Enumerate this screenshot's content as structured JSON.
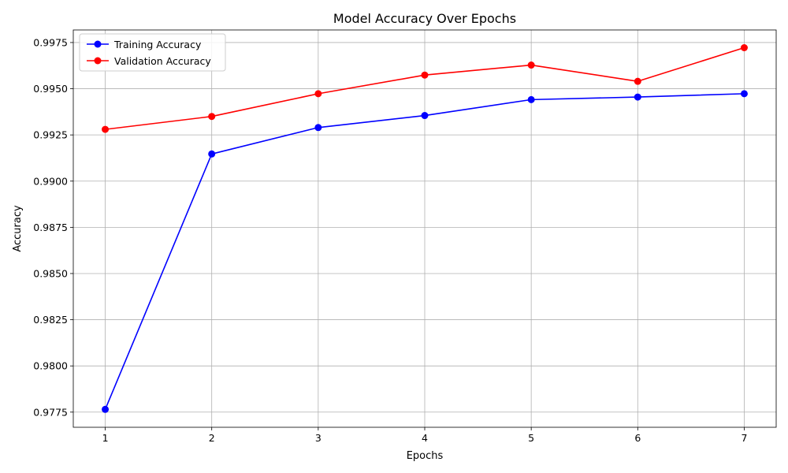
{
  "chart_data": {
    "type": "line",
    "title": "Model Accuracy Over Epochs",
    "xlabel": "Epochs",
    "ylabel": "Accuracy",
    "x": [
      1,
      2,
      3,
      4,
      5,
      6,
      7
    ],
    "xticks": [
      "1",
      "2",
      "3",
      "4",
      "5",
      "6",
      "7"
    ],
    "xlim": [
      0.7,
      7.3
    ],
    "ylim": [
      0.97668,
      0.99818
    ],
    "yticks": [
      "0.9775",
      "0.9800",
      "0.9825",
      "0.9850",
      "0.9875",
      "0.9900",
      "0.9925",
      "0.9950",
      "0.9975"
    ],
    "grid": true,
    "legend_position": "top-left",
    "series": [
      {
        "name": "Training Accuracy",
        "color": "#0000ff",
        "marker": "circle",
        "values": [
          0.97765,
          0.99147,
          0.9929,
          0.99355,
          0.99441,
          0.99455,
          0.99473
        ]
      },
      {
        "name": "Validation Accuracy",
        "color": "#ff0000",
        "marker": "circle",
        "values": [
          0.9928,
          0.9935,
          0.99473,
          0.99574,
          0.99628,
          0.9954,
          0.99722
        ]
      }
    ]
  }
}
